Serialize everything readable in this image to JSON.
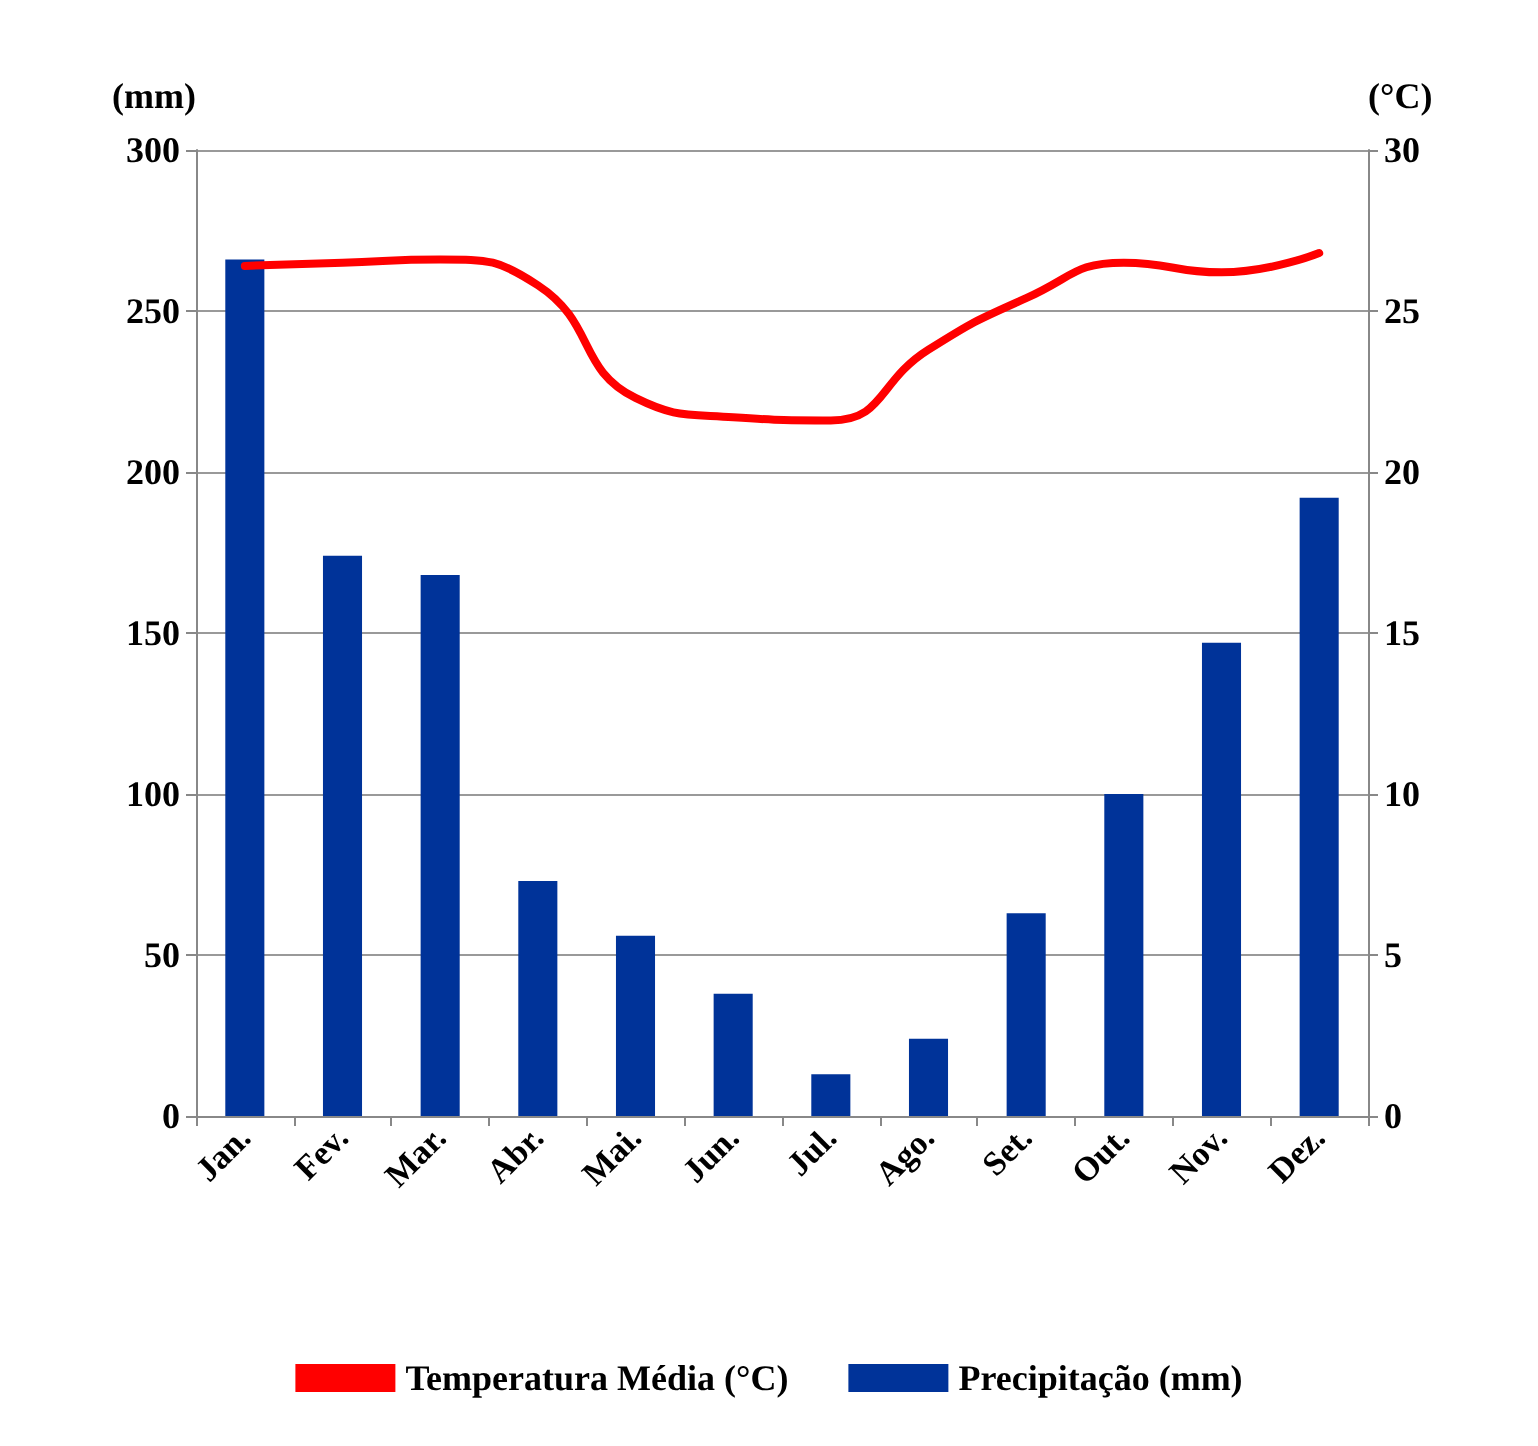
{
  "chart_data": {
    "type": "bar",
    "ylabel": "(mm)",
    "y2label": "(°C)",
    "categories": [
      "Jan.",
      "Fev.",
      "Mar.",
      "Abr.",
      "Mai.",
      "Jun.",
      "Jul.",
      "Ago.",
      "Set.",
      "Out.",
      "Nov.",
      "Dez."
    ],
    "series": [
      {
        "name": "Temperatura Média (°C)",
        "type": "line",
        "axis": "y2",
        "color": "#ff0000",
        "values": [
          26.4,
          26.5,
          26.6,
          25.8,
          22.3,
          21.7,
          21.6,
          23.8,
          25.4,
          26.5,
          26.2,
          26.8
        ]
      },
      {
        "name": "Precipitação (mm)",
        "color": "#003399",
        "values": [
          266,
          174,
          168,
          73,
          56,
          38,
          13,
          24,
          63,
          100,
          147,
          192
        ]
      }
    ],
    "ylim": [
      0,
      300
    ],
    "yticks": [
      0,
      50,
      100,
      150,
      200,
      250,
      300
    ],
    "y2lim": [
      0,
      30
    ],
    "y2ticks": [
      0,
      5,
      10,
      15,
      20,
      25,
      30
    ],
    "grid": "y",
    "legend": "bottom",
    "marker": "none",
    "line_style": "solid"
  }
}
